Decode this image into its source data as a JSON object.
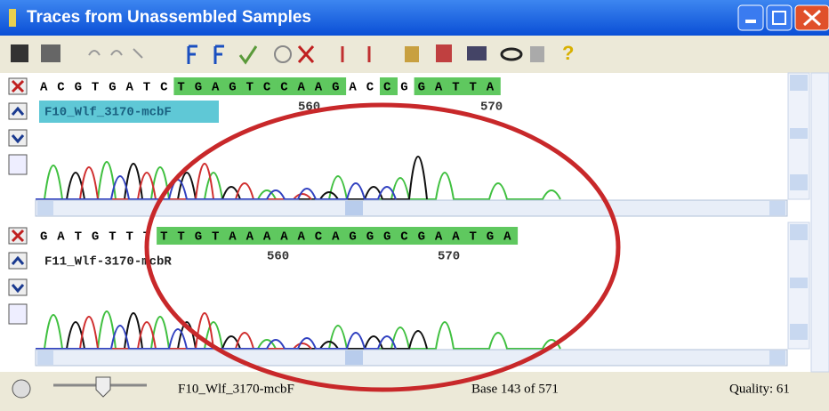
{
  "window": {
    "title": "Traces from Unassembled Samples"
  },
  "toolbar": {
    "help": "?"
  },
  "panels": [
    {
      "bases": [
        "A",
        "C",
        "G",
        "T",
        "G",
        "A",
        "T",
        "C",
        "T",
        "G",
        "A",
        "G",
        "T",
        "C",
        "C",
        "A",
        "A",
        "G",
        "A",
        "C",
        "C",
        "G",
        "G",
        "A",
        "T",
        "T",
        "A"
      ],
      "highlight": [
        false,
        false,
        false,
        false,
        false,
        false,
        false,
        false,
        true,
        true,
        true,
        true,
        true,
        true,
        true,
        true,
        true,
        true,
        false,
        false,
        true,
        false,
        true,
        true,
        true,
        true,
        true
      ],
      "name": "F10_Wlf_3170-mcbF",
      "ticks": [
        560,
        570
      ],
      "name_highlight": "#5fc8d6"
    },
    {
      "bases": [
        "G",
        "A",
        "T",
        "G",
        "T",
        "T",
        "T",
        "T",
        "T",
        "G",
        "T",
        "A",
        "A",
        "A",
        "A",
        "A",
        "C",
        "A",
        "G",
        "G",
        "G",
        "C",
        "G",
        "A",
        "A",
        "T",
        "G",
        "A"
      ],
      "highlight": [
        false,
        false,
        false,
        false,
        false,
        false,
        false,
        true,
        true,
        true,
        true,
        true,
        true,
        true,
        true,
        true,
        true,
        true,
        true,
        true,
        true,
        true,
        true,
        true,
        true,
        true,
        true,
        true
      ],
      "name": "F11_Wlf-3170-mcbR",
      "ticks": [
        560,
        570
      ],
      "name_highlight": "#ffffff"
    }
  ],
  "status": {
    "sample": "F10_Wlf_3170-mcbF",
    "base": "Base 143 of 571",
    "quality": "Quality: 61"
  }
}
